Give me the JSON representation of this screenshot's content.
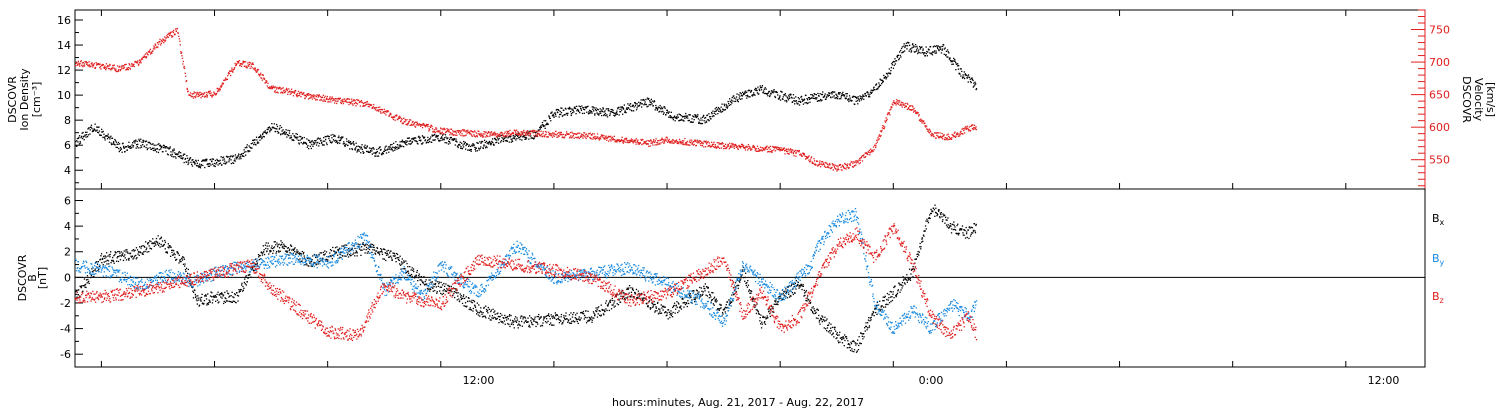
{
  "chart_data": [
    {
      "type": "scatter",
      "panel": "top",
      "xlabel": "hours:minutes, Aug. 21, 2017 - Aug. 22, 2017",
      "x_ticks": [
        "12:00",
        "0:00",
        "12:00"
      ],
      "x_tick_hours": [
        12,
        24,
        36
      ],
      "xlim_hours": [
        1.3,
        37.1
      ],
      "left_axis": {
        "label_lines": [
          "DSCOVR",
          "Ion Density",
          "[cm⁻³]"
        ],
        "ylim": [
          2.5,
          16.8
        ],
        "ticks": [
          4,
          6,
          8,
          10,
          12,
          14,
          16
        ],
        "color": "#000000"
      },
      "right_axis": {
        "label_lines": [
          "DSCOVR",
          "Velocity",
          "[km/s]"
        ],
        "ylim": [
          505,
          780
        ],
        "ticks": [
          550,
          600,
          650,
          700,
          750
        ],
        "color": "#e02020"
      },
      "series": [
        {
          "axis": "left",
          "color": "#000000",
          "x": [
            1.3,
            1.8,
            2.5,
            3.0,
            3.8,
            4.5,
            5.0,
            5.6,
            6.5,
            7.5,
            8.2,
            8.8,
            9.3,
            10.2,
            11.0,
            11.8,
            12.5,
            13.5,
            14.0,
            14.8,
            15.5,
            16.5,
            17.2,
            18.0,
            18.8,
            19.5,
            20.0,
            20.5,
            21.0,
            21.5,
            22.0,
            22.5,
            23.0,
            23.3,
            23.8,
            24.3,
            24.8,
            25.2
          ],
          "y": [
            6.2,
            7.5,
            5.8,
            6.2,
            5.6,
            4.5,
            4.7,
            5.0,
            7.6,
            6.1,
            6.6,
            5.8,
            5.5,
            6.4,
            6.7,
            5.8,
            6.5,
            6.9,
            8.6,
            8.9,
            8.6,
            9.5,
            8.3,
            8.1,
            9.8,
            10.5,
            10.0,
            9.6,
            9.9,
            10.1,
            9.6,
            10.5,
            12.5,
            14.0,
            13.5,
            13.8,
            11.8,
            10.8
          ]
        },
        {
          "axis": "right",
          "color": "#e02020",
          "x": [
            1.3,
            2.0,
            2.5,
            3.0,
            3.5,
            4.0,
            4.3,
            5.0,
            5.6,
            6.0,
            6.5,
            7.0,
            7.5,
            8.5,
            9.0,
            10.0,
            11.0,
            12.0,
            13.0,
            14.0,
            15.0,
            16.0,
            16.5,
            17.0,
            18.0,
            19.0,
            19.5,
            20.0,
            20.5,
            21.0,
            21.5,
            22.0,
            22.5,
            23.0,
            23.5,
            24.0,
            24.5,
            25.0,
            25.2
          ],
          "y": [
            700,
            695,
            690,
            700,
            730,
            750,
            650,
            652,
            700,
            695,
            660,
            655,
            648,
            640,
            637,
            610,
            595,
            590,
            592,
            590,
            587,
            580,
            576,
            582,
            575,
            570,
            568,
            566,
            560,
            545,
            538,
            545,
            570,
            640,
            630,
            590,
            585,
            600,
            600
          ]
        }
      ]
    },
    {
      "type": "scatter",
      "panel": "bottom",
      "xlabel": "hours:minutes, Aug. 21, 2017 - Aug. 22, 2017",
      "x_ticks": [
        "12:00",
        "0:00",
        "12:00"
      ],
      "xlim_hours": [
        1.3,
        37.1
      ],
      "left_axis": {
        "label_lines": [
          "DSCOVR",
          "B",
          "[nT]"
        ],
        "ylim": [
          -7.0,
          6.9
        ],
        "ticks": [
          -6,
          -4,
          -2,
          0,
          2,
          4,
          6
        ],
        "zero_line": true
      },
      "series": [
        {
          "name": "Bx",
          "name_sub": "x",
          "color": "#000000",
          "x": [
            1.3,
            2.0,
            2.8,
            3.5,
            4.2,
            4.5,
            5.0,
            5.6,
            6.3,
            6.8,
            7.5,
            8.2,
            9.0,
            9.8,
            10.6,
            11.2,
            12.0,
            13.0,
            14.0,
            15.0,
            16.0,
            17.0,
            18.0,
            18.5,
            19.0,
            19.5,
            20.0,
            20.5,
            21.0,
            21.5,
            22.0,
            22.5,
            23.0,
            23.5,
            24.0,
            24.5,
            25.0,
            25.2
          ],
          "y": [
            -1.5,
            1.5,
            1.8,
            2.9,
            1.1,
            -1.8,
            -1.5,
            -1.5,
            2.3,
            2.5,
            1.3,
            2.0,
            2.3,
            1.5,
            -0.5,
            -1.0,
            -2.5,
            -3.5,
            -3.2,
            -3.0,
            -1.0,
            -2.8,
            -0.8,
            -2.8,
            0.5,
            -3.5,
            -1.5,
            -0.5,
            -3.0,
            -4.5,
            -5.5,
            -2.5,
            -1.2,
            0.5,
            5.5,
            4.0,
            3.5,
            4.0
          ]
        },
        {
          "name": "By",
          "name_sub": "y",
          "color": "#1a8ae0",
          "x": [
            1.3,
            2.2,
            3.0,
            3.8,
            4.5,
            5.2,
            6.0,
            7.0,
            8.0,
            9.0,
            9.5,
            10.0,
            10.5,
            11.0,
            12.0,
            13.0,
            14.0,
            15.0,
            16.0,
            17.0,
            18.0,
            18.5,
            19.0,
            20.0,
            20.8,
            21.0,
            21.5,
            22.0,
            22.5,
            23.0,
            23.5,
            24.0,
            24.5,
            25.0,
            25.2
          ],
          "y": [
            1.0,
            0.5,
            -0.5,
            0.2,
            -0.3,
            0.6,
            1.0,
            1.5,
            1.2,
            3.2,
            -1.0,
            0.5,
            -1.5,
            1.0,
            -1.2,
            2.5,
            0.0,
            0.3,
            0.8,
            -0.5,
            -2.0,
            -3.5,
            1.0,
            -1.5,
            1.0,
            2.5,
            4.5,
            5.0,
            -2.0,
            -4.0,
            -2.5,
            -4.0,
            -2.0,
            -3.0,
            -2.0
          ]
        },
        {
          "name": "Bz",
          "name_sub": "z",
          "color": "#e02020",
          "x": [
            1.3,
            2.0,
            3.0,
            3.8,
            4.5,
            5.2,
            6.0,
            6.5,
            7.0,
            8.0,
            8.8,
            9.5,
            10.0,
            11.0,
            12.0,
            13.0,
            14.0,
            15.0,
            16.0,
            17.0,
            18.0,
            18.5,
            19.0,
            19.5,
            20.0,
            20.5,
            21.0,
            21.5,
            22.0,
            22.5,
            23.0,
            23.5,
            24.0,
            24.5,
            25.0,
            25.2
          ],
          "y": [
            -1.5,
            -1.5,
            -1.0,
            -0.5,
            0.0,
            0.5,
            1.0,
            -0.8,
            -2.0,
            -4.2,
            -4.5,
            -0.5,
            -1.5,
            -2.0,
            1.5,
            1.0,
            0.6,
            0.0,
            -1.8,
            -1.2,
            0.5,
            1.5,
            -3.0,
            -1.0,
            -4.0,
            -3.0,
            0.0,
            2.5,
            3.5,
            1.5,
            4.0,
            1.0,
            -3.0,
            -4.5,
            -3.0,
            -4.5
          ]
        }
      ],
      "legend": {
        "placement": "right",
        "entries": [
          {
            "label": "B",
            "sub": "x",
            "color": "#000000"
          },
          {
            "label": "B",
            "sub": "y",
            "color": "#1a8ae0"
          },
          {
            "label": "B",
            "sub": "z",
            "color": "#e02020"
          }
        ]
      }
    }
  ]
}
